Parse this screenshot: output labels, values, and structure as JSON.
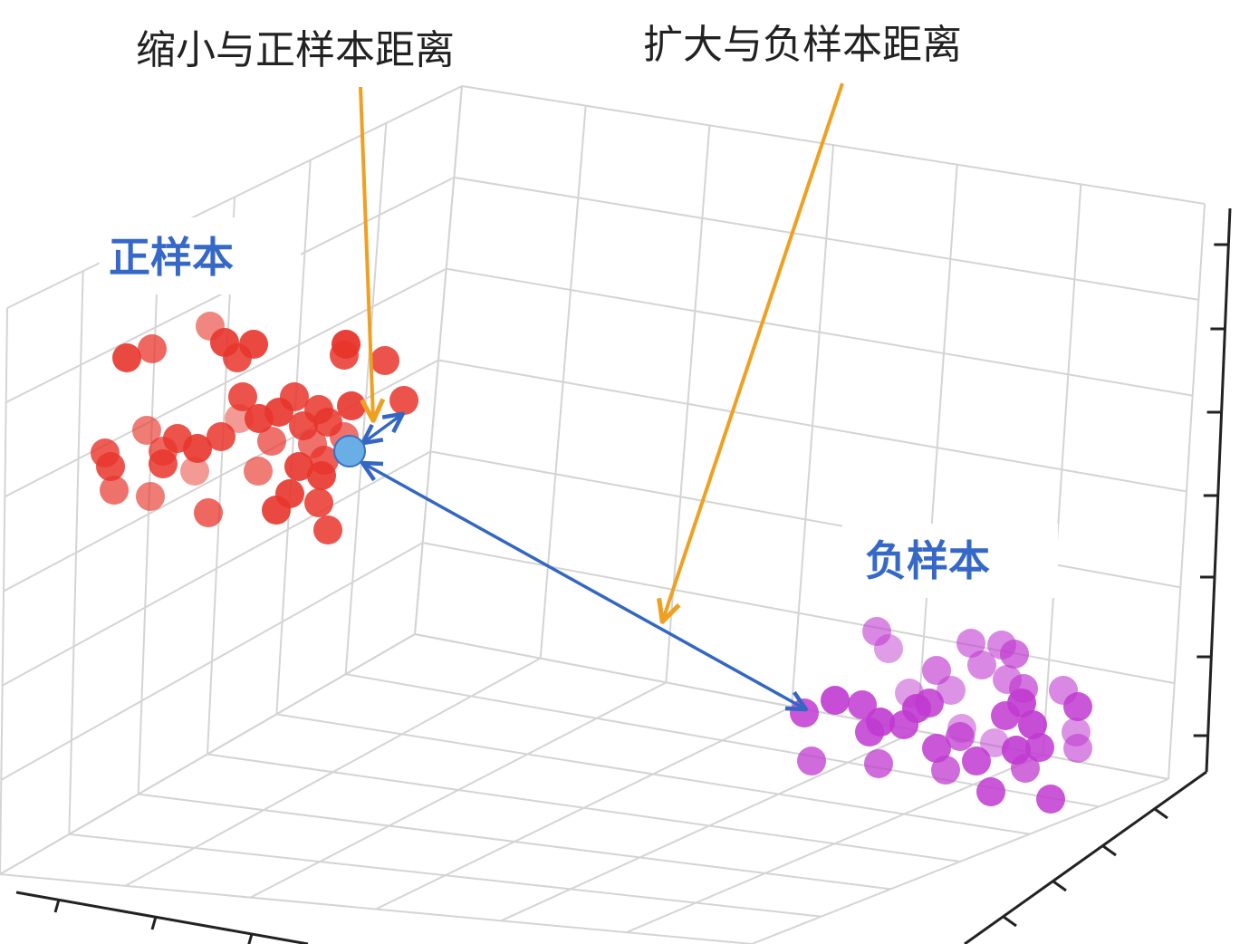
{
  "annotations": {
    "pull_positive": "缩小与正样本距离",
    "push_negative": "扩大与负样本距离"
  },
  "labels": {
    "positive": "正样本",
    "negative": "负样本"
  },
  "colors": {
    "positive": "#e8352c",
    "negative": "#c03ad0",
    "anchor": "#6aaee6",
    "anchor_stroke": "#3a6fc4",
    "distance_arrow": "#3466c4",
    "callout_arrow": "#f0a020",
    "label_text": "#3568c8",
    "grid": "#d4d4d4",
    "axis": "#222222"
  }
}
